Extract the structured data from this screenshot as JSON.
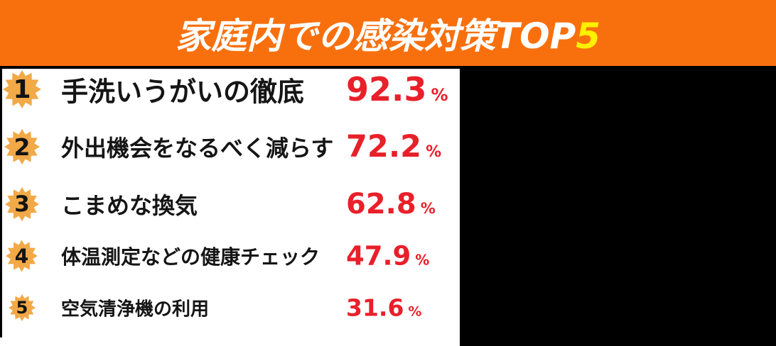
{
  "header": {
    "title_main": "家庭内での感染対策TOP",
    "title_accent": "5",
    "bg_color": "#f8700e",
    "title_color": "#ffffff",
    "accent_color": "#fff100"
  },
  "ranking": {
    "badge_color": "#f2a947",
    "label_color": "#151515",
    "value_color": "#e8202a",
    "items": [
      {
        "rank": "1",
        "label": "手洗いうがいの徹底",
        "value": "92.3",
        "unit": "%"
      },
      {
        "rank": "2",
        "label": "外出機会をなるべく減らす",
        "value": "72.2",
        "unit": "%"
      },
      {
        "rank": "3",
        "label": "こまめな換気",
        "value": "62.8",
        "unit": "%"
      },
      {
        "rank": "4",
        "label": "体温測定などの健康チェック",
        "value": "47.9",
        "unit": "%"
      },
      {
        "rank": "5",
        "label": "空気清浄機の利用",
        "value": "31.6",
        "unit": "%"
      }
    ]
  },
  "chart_data": {
    "type": "table",
    "title": "家庭内での感染対策TOP5",
    "categories": [
      "手洗いうがいの徹底",
      "外出機会をなるべく減らす",
      "こまめな換気",
      "体温測定などの健康チェック",
      "空気清浄機の利用"
    ],
    "values": [
      92.3,
      72.2,
      62.8,
      47.9,
      31.6
    ],
    "ranks": [
      1,
      2,
      3,
      4,
      5
    ],
    "unit": "%"
  }
}
